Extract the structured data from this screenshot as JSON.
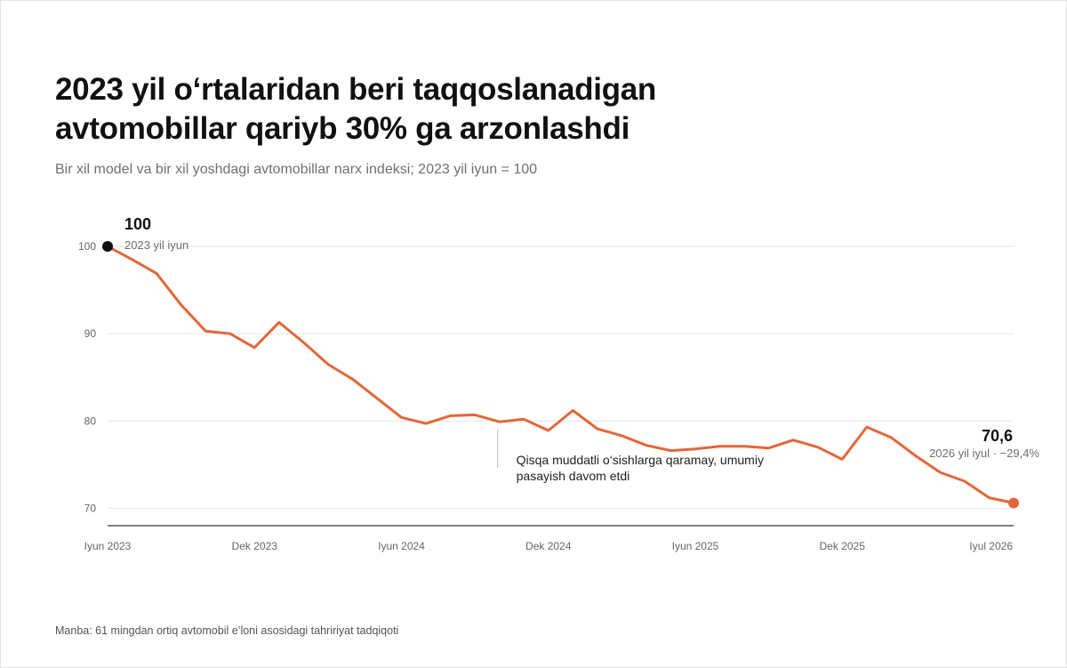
{
  "title_line1": "2023 yil o‘rtalaridan beri taqqoslanadigan",
  "title_line2": "avtomobillar qariyb 30% ga arzonlashdi",
  "subtitle": "Bir xil model va bir xil yoshdagi avtomobillar narx indeksi; 2023 yil iyun = 100",
  "source": "Manba: 61 mingdan ortiq avtomobil e’loni asosidagi tahririyat tadqiqoti",
  "colors": {
    "line": "#e2673b",
    "start_marker": "#111111",
    "end_marker": "#e2673b",
    "grid": "#e6e6e6",
    "axis": "#333333"
  },
  "chart_data": {
    "type": "line",
    "x_unit": "month",
    "x": [
      "2023-06",
      "2023-07",
      "2023-08",
      "2023-09",
      "2023-10",
      "2023-11",
      "2023-12",
      "2024-01",
      "2024-02",
      "2024-03",
      "2024-04",
      "2024-05",
      "2024-06",
      "2024-07",
      "2024-08",
      "2024-09",
      "2024-10",
      "2024-11",
      "2024-12",
      "2025-01",
      "2025-02",
      "2025-03",
      "2025-04",
      "2025-05",
      "2025-06",
      "2025-07",
      "2025-08",
      "2025-09",
      "2025-10",
      "2025-11",
      "2025-12",
      "2026-01",
      "2026-02",
      "2026-03",
      "2026-04",
      "2026-05",
      "2026-06",
      "2026-07"
    ],
    "values": [
      100,
      98.5,
      96.9,
      93.3,
      90.3,
      90.0,
      88.4,
      91.3,
      89.0,
      86.5,
      84.8,
      82.6,
      80.4,
      79.7,
      80.6,
      80.7,
      79.9,
      80.2,
      78.9,
      81.2,
      79.1,
      78.3,
      77.2,
      76.6,
      76.8,
      77.1,
      77.1,
      76.9,
      77.8,
      77.0,
      75.6,
      79.3,
      78.1,
      76.0,
      74.1,
      73.1,
      71.2,
      70.6
    ],
    "ylim": [
      68,
      100
    ],
    "y_ticks": [
      70,
      80,
      90,
      100
    ],
    "y_tick_labels": [
      "70",
      "80",
      "90",
      "100"
    ],
    "x_ticks": [
      {
        "x": "2023-06",
        "label": "Iyun 2023"
      },
      {
        "x": "2023-12",
        "label": "Dek 2023"
      },
      {
        "x": "2024-06",
        "label": "Iyun 2024"
      },
      {
        "x": "2024-12",
        "label": "Dek 2024"
      },
      {
        "x": "2025-06",
        "label": "Iyun 2025"
      },
      {
        "x": "2025-12",
        "label": "Dek 2025"
      },
      {
        "x": "2026-07",
        "label": "Iyul 2026"
      }
    ],
    "grid": true,
    "annotations": {
      "start": {
        "x": "2023-06",
        "value_label": "100",
        "date_label": "2023 yil iyun"
      },
      "end": {
        "x": "2026-07",
        "value_label": "70,6",
        "date_label": "2026 yil iyul · −29,4%"
      },
      "note": {
        "x": "2024-10",
        "line1": "Qisqa muddatli o‘sishlarga qaramay, umumiy",
        "line2": "pasayish davom etdi"
      }
    }
  }
}
